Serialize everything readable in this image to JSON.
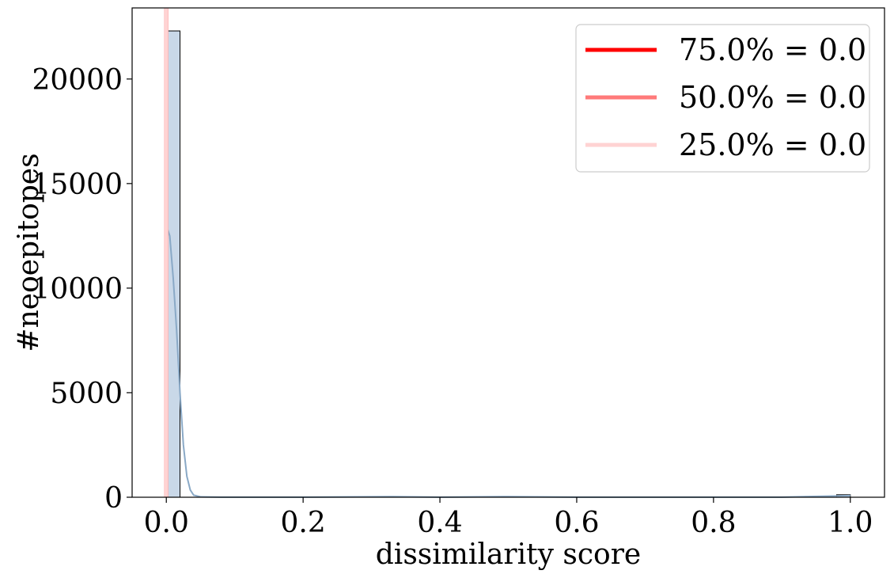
{
  "chart_data": {
    "type": "bar",
    "subtype": "histogram_with_kde",
    "xlabel": "dissimilarity score",
    "ylabel": "#neoepitopes",
    "xlim": [
      -0.05,
      1.05
    ],
    "ylim": [
      0,
      23400
    ],
    "x_ticks": [
      0.0,
      0.2,
      0.4,
      0.6,
      0.8,
      1.0
    ],
    "x_tick_labels": [
      "0.0",
      "0.2",
      "0.4",
      "0.6",
      "0.8",
      "1.0"
    ],
    "y_ticks": [
      0,
      5000,
      10000,
      15000,
      20000
    ],
    "y_tick_labels": [
      "0",
      "5000",
      "10000",
      "15000",
      "20000"
    ],
    "bin_width": 0.02,
    "bins": [
      {
        "x0": 0.0,
        "x1": 0.02,
        "count": 22300
      },
      {
        "x0": 0.98,
        "x1": 1.0,
        "count": 120
      }
    ],
    "bar_color": "#c9d8e8",
    "kde": {
      "color": "#8aa9c6",
      "x": [
        0.0,
        0.005,
        0.01,
        0.015,
        0.02,
        0.025,
        0.03,
        0.035,
        0.04,
        0.05,
        0.08,
        0.2,
        0.33,
        0.4,
        0.5,
        0.6,
        0.9,
        0.98,
        1.0
      ],
      "y": [
        13000,
        12500,
        10500,
        8000,
        5000,
        2500,
        1000,
        350,
        100,
        20,
        5,
        5,
        30,
        5,
        30,
        5,
        5,
        60,
        80
      ]
    },
    "percentile_lines": [
      {
        "label": "75.0% = 0.0",
        "x": 0.0,
        "color": "#ff0000",
        "opacity": 1.0
      },
      {
        "label": "50.0% = 0.0",
        "x": 0.0,
        "color": "#ff7a7a",
        "opacity": 1.0
      },
      {
        "label": "25.0% = 0.0",
        "x": 0.0,
        "color": "#ffd3d3",
        "opacity": 1.0
      }
    ],
    "legend_position": "top-right",
    "grid": false
  }
}
